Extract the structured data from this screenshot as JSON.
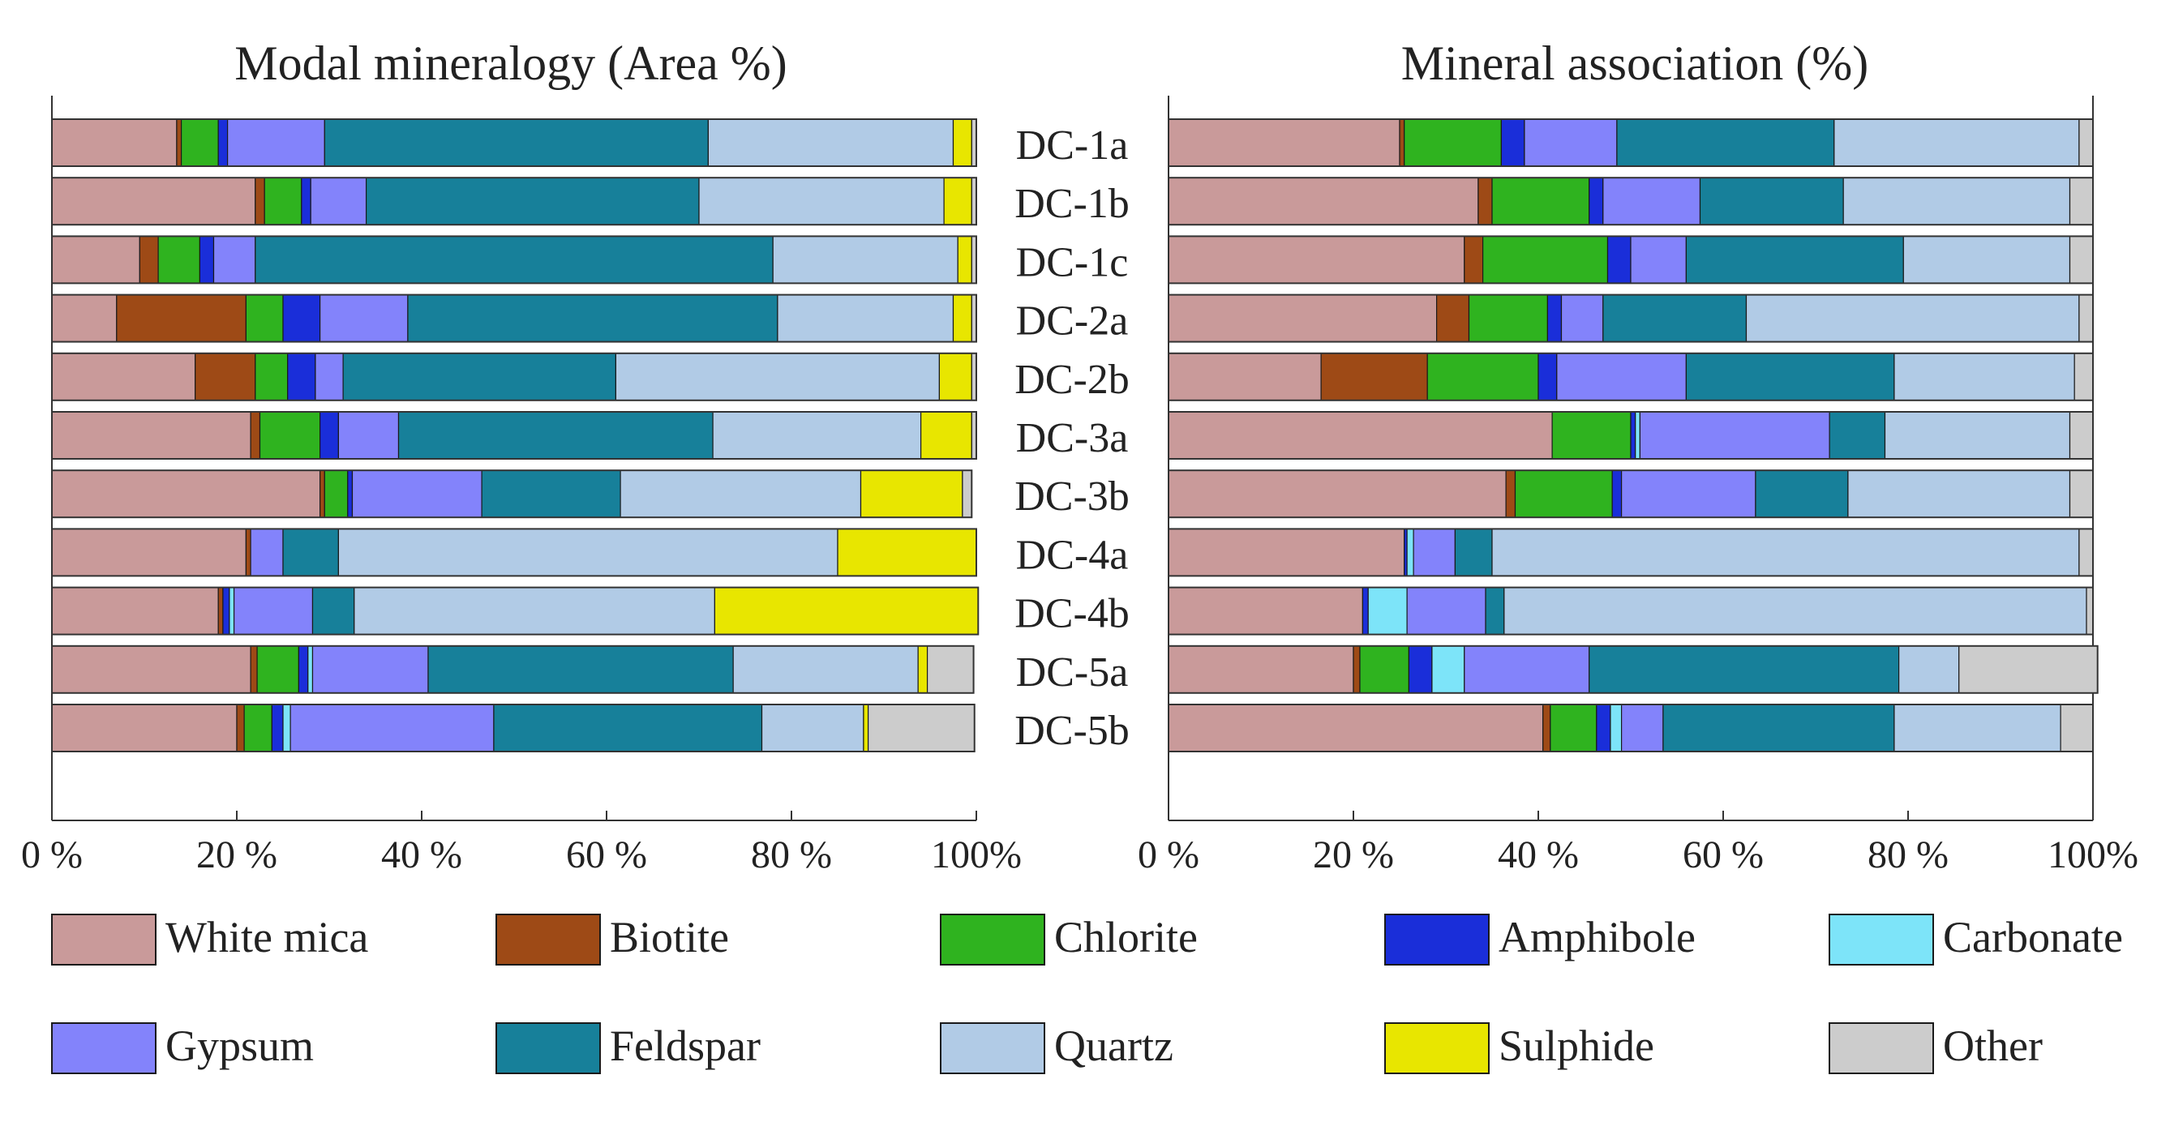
{
  "figure": {
    "left_title": "Modal mineralogy (Area %)",
    "right_title": "Mineral association (%)"
  },
  "legend": [
    {
      "name": "White mica",
      "color": "#c99a9a"
    },
    {
      "name": "Biotite",
      "color": "#9e4a16"
    },
    {
      "name": "Chlorite",
      "color": "#2fb31f"
    },
    {
      "name": "Amphibole",
      "color": "#1a2ed9"
    },
    {
      "name": "Carbonate",
      "color": "#7de4f9"
    },
    {
      "name": "Gypsum",
      "color": "#8383fb"
    },
    {
      "name": "Feldspar",
      "color": "#17809a"
    },
    {
      "name": "Quartz",
      "color": "#b1cbe6"
    },
    {
      "name": "Sulphide",
      "color": "#e8e600"
    },
    {
      "name": "Other",
      "color": "#cccccc"
    }
  ],
  "chart_data": [
    {
      "type": "bar",
      "orientation": "horizontal",
      "stacked": true,
      "title": "Modal mineralogy (Area %)",
      "xlim": [
        0,
        100
      ],
      "xticks": [
        "0 %",
        "20 %",
        "40 %",
        "60 %",
        "80 %",
        "100%"
      ],
      "categories": [
        "DC-1a",
        "DC-1b",
        "DC-1c",
        "DC-2a",
        "DC-2b",
        "DC-3a",
        "DC-3b",
        "DC-4a",
        "DC-4b",
        "DC-5a",
        "DC-5b"
      ],
      "series": [
        {
          "name": "White mica",
          "values": [
            13.5,
            22.0,
            9.5,
            7.0,
            15.5,
            21.5,
            29.0,
            21.0,
            18.0,
            21.5,
            20.0
          ]
        },
        {
          "name": "Biotite",
          "values": [
            0.5,
            1.0,
            2.0,
            14.0,
            6.5,
            1.0,
            0.5,
            0.5,
            0.5,
            0.7,
            0.8
          ]
        },
        {
          "name": "Chlorite",
          "values": [
            4.0,
            4.0,
            4.5,
            4.0,
            3.5,
            6.5,
            2.5,
            0.0,
            0.0,
            4.5,
            3.0
          ]
        },
        {
          "name": "Amphibole",
          "values": [
            1.0,
            1.0,
            1.5,
            4.0,
            3.0,
            2.0,
            0.5,
            0.0,
            0.7,
            1.0,
            1.2
          ]
        },
        {
          "name": "Carbonate",
          "values": [
            0.0,
            0.0,
            0.0,
            0.0,
            0.0,
            0.0,
            0.0,
            0.0,
            0.5,
            0.5,
            0.8
          ]
        },
        {
          "name": "Gypsum",
          "values": [
            10.5,
            6.0,
            4.5,
            9.5,
            3.0,
            6.5,
            14.0,
            3.5,
            8.5,
            12.5,
            22.0
          ]
        },
        {
          "name": "Feldspar",
          "values": [
            41.5,
            36.0,
            56.0,
            40.0,
            29.5,
            34.0,
            15.0,
            6.0,
            4.5,
            33.0,
            29.0
          ]
        },
        {
          "name": "Quartz",
          "values": [
            26.5,
            26.5,
            20.0,
            19.0,
            35.0,
            22.5,
            26.0,
            54.0,
            39.0,
            20.0,
            11.0
          ]
        },
        {
          "name": "Sulphide",
          "values": [
            2.0,
            3.0,
            1.5,
            2.0,
            3.5,
            5.5,
            11.0,
            15.0,
            28.5,
            1.0,
            0.5
          ]
        },
        {
          "name": "Other",
          "values": [
            0.5,
            0.5,
            0.5,
            0.5,
            0.5,
            0.5,
            1.0,
            0.0,
            0.0,
            5.0,
            11.5
          ]
        }
      ]
    },
    {
      "type": "bar",
      "orientation": "horizontal",
      "stacked": true,
      "title": "Mineral association (%)",
      "xlim": [
        0,
        100
      ],
      "xticks": [
        "0 %",
        "20 %",
        "40 %",
        "60 %",
        "80 %",
        "100%"
      ],
      "categories": [
        "DC-1a",
        "DC-1b",
        "DC-1c",
        "DC-2a",
        "DC-2b",
        "DC-3a",
        "DC-3b",
        "DC-4a",
        "DC-4b",
        "DC-5a",
        "DC-5b"
      ],
      "series": [
        {
          "name": "White mica",
          "values": [
            25.0,
            33.5,
            32.0,
            29.0,
            16.5,
            41.5,
            36.5,
            25.5,
            21.0,
            20.0,
            40.5
          ]
        },
        {
          "name": "Biotite",
          "values": [
            0.5,
            1.5,
            2.0,
            3.5,
            11.5,
            0.0,
            1.0,
            0.0,
            0.0,
            0.7,
            0.8
          ]
        },
        {
          "name": "Chlorite",
          "values": [
            10.5,
            10.5,
            13.5,
            8.5,
            12.0,
            8.5,
            10.5,
            0.0,
            0.0,
            5.3,
            5.0
          ]
        },
        {
          "name": "Amphibole",
          "values": [
            2.5,
            1.5,
            2.5,
            1.5,
            2.0,
            0.5,
            1.0,
            0.3,
            0.6,
            2.5,
            1.5
          ]
        },
        {
          "name": "Carbonate",
          "values": [
            0.0,
            0.0,
            0.0,
            0.0,
            0.0,
            0.5,
            0.0,
            0.7,
            4.2,
            3.5,
            1.2
          ]
        },
        {
          "name": "Gypsum",
          "values": [
            10.0,
            10.5,
            6.0,
            4.5,
            14.0,
            20.5,
            14.5,
            4.5,
            8.5,
            13.5,
            4.5
          ]
        },
        {
          "name": "Feldspar",
          "values": [
            23.5,
            15.5,
            23.5,
            15.5,
            22.5,
            6.0,
            10.0,
            4.0,
            2.0,
            33.5,
            25.0
          ]
        },
        {
          "name": "Quartz",
          "values": [
            26.5,
            24.5,
            18.0,
            36.0,
            19.5,
            20.0,
            24.0,
            63.5,
            63.0,
            6.5,
            18.0
          ]
        },
        {
          "name": "Sulphide",
          "values": [
            0.0,
            0.0,
            0.0,
            0.0,
            0.0,
            0.0,
            0.0,
            0.0,
            0.0,
            0.0,
            0.0
          ]
        },
        {
          "name": "Other",
          "values": [
            1.5,
            2.5,
            2.5,
            1.5,
            2.0,
            2.5,
            2.5,
            1.5,
            0.7,
            15.0,
            3.5
          ]
        }
      ]
    }
  ]
}
